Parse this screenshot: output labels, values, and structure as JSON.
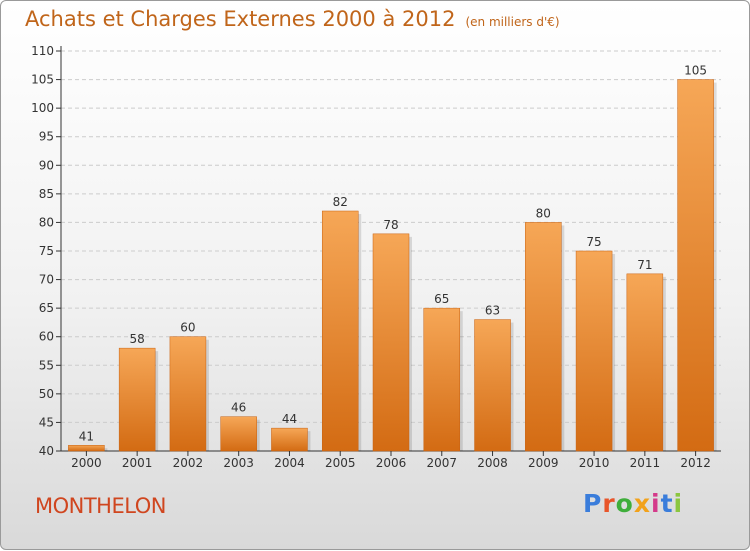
{
  "title": "Achats et Charges Externes 2000 à 2012",
  "unit": "(en milliers d'€)",
  "commune": "MONTHELON",
  "logo": {
    "letters": [
      "P",
      "r",
      "o",
      "x",
      "i",
      "t",
      "i"
    ],
    "colors": [
      "#3a7ddb",
      "#e8552a",
      "#3fae3b",
      "#f2a21b",
      "#d43a8a",
      "#3a7ddb",
      "#8bc63f"
    ]
  },
  "colors": {
    "bar_light": "#f6a757",
    "bar_dark": "#d36b13",
    "grid": "#cccccc",
    "axis": "#333333"
  },
  "chart_data": {
    "type": "bar",
    "categories": [
      "2000",
      "2001",
      "2002",
      "2003",
      "2004",
      "2005",
      "2006",
      "2007",
      "2008",
      "2009",
      "2010",
      "2011",
      "2012"
    ],
    "values": [
      41,
      58,
      60,
      46,
      44,
      82,
      78,
      65,
      63,
      80,
      75,
      71,
      105
    ],
    "ylim": [
      40,
      110
    ],
    "yticks": [
      40,
      45,
      50,
      55,
      60,
      65,
      70,
      75,
      80,
      85,
      90,
      95,
      100,
      105,
      110
    ],
    "grid": "horizontal"
  }
}
